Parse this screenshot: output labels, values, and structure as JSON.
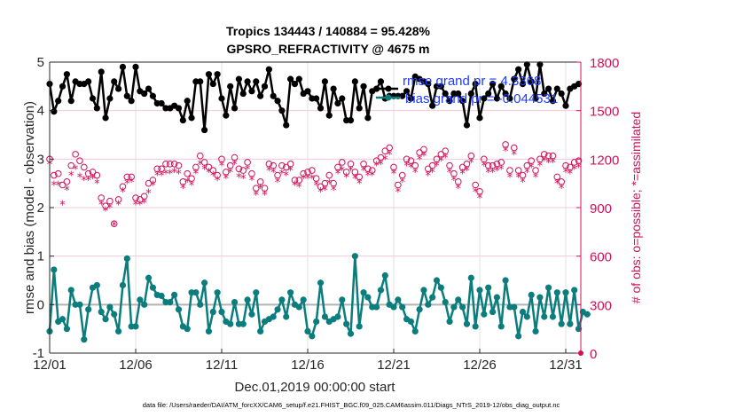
{
  "chart_data": {
    "type": "line",
    "title": [
      "Tropics 134443 / 140884 = 95.428%",
      "GPSRO_REFRACTIVITY @ 4675 m"
    ],
    "xlabel": "Dec.01,2019 00:00:00 start",
    "ylabel": "rmse and bias (model - observation)",
    "ylabel_right": "# of obs: o=possible; *=assimilated",
    "footer": "data file: /Users/raeder/DAI/ATM_forcXX/CAM6_setup/f.e21.FHIST_BGC.f09_025.CAM6assim.011/Diags_NTrS_2019-12/obs_diag_output.nc",
    "x_tick_labels": [
      "12/01",
      "12/06",
      "12/11",
      "12/16",
      "12/21",
      "12/26",
      "12/31"
    ],
    "x_tick_days": [
      0,
      5,
      10,
      15,
      20,
      25,
      30
    ],
    "xlim_days": [
      0,
      30.5
    ],
    "ylim": [
      -1,
      5
    ],
    "y_ticks": [
      -1,
      0,
      1,
      2,
      3,
      4,
      5
    ],
    "ylim_right": [
      0,
      1800
    ],
    "y_ticks_right": [
      0,
      300,
      600,
      900,
      1200,
      1500,
      1800
    ],
    "grid": true,
    "legend_position": "top-right",
    "legend": [
      {
        "label": "rmse grand pr = 4.3368",
        "color": "#000000"
      },
      {
        "label": "bias grand pr = -0.044531",
        "color": "#008080"
      }
    ],
    "colors": {
      "rmse": "#000000",
      "bias": "#0b7d7d",
      "obs": "#d0105a",
      "zero_line": "#b3b3b3",
      "grid": "#f2c9d8",
      "legend_text": "#1f3cff"
    },
    "time_step_days": 0.25,
    "series": [
      {
        "name": "rmse",
        "axis": "left",
        "values": [
          4.55,
          3.98,
          4.2,
          4.5,
          4.75,
          4.2,
          4.6,
          4.55,
          4.55,
          4.6,
          4.25,
          4.05,
          4.8,
          3.85,
          4.25,
          4.6,
          4.45,
          4.9,
          4.3,
          4.2,
          4.9,
          4.4,
          4.35,
          4.45,
          4.3,
          4.15,
          4.15,
          4.05,
          4.05,
          4.1,
          4.05,
          3.8,
          4.2,
          3.85,
          4.6,
          4.6,
          3.6,
          4.75,
          4.55,
          4.75,
          4.25,
          3.9,
          4.5,
          4.05,
          4.65,
          4.35,
          4.6,
          4.4,
          4.6,
          4.3,
          4.5,
          4.85,
          4.3,
          4.2,
          4.0,
          3.7,
          4.65,
          4.55,
          4.65,
          4.35,
          4.4,
          4.25,
          4.25,
          4.05,
          4.6,
          3.9,
          4.45,
          4.15,
          4.25,
          3.8,
          3.8,
          4.6,
          4.05,
          4.5,
          3.85,
          4.4,
          4.45,
          4.6,
          4.25,
          4.3,
          4.3,
          4.3,
          4.3,
          4.4,
          4.25,
          4.7,
          4.65,
          4.6,
          4.55,
          4.1,
          4.5,
          4.5,
          4.35,
          4.2,
          4.35,
          4.35,
          4.2,
          3.7,
          4.35,
          4.55,
          3.85,
          4.25,
          4.35,
          4.55,
          4.25,
          4.5,
          4.35,
          4.25,
          4.65,
          4.85,
          4.55,
          4.95,
          4.6,
          4.25,
          4.95,
          4.35,
          4.45,
          4.2,
          4.45,
          4.35,
          4.1,
          4.45,
          4.5,
          4.55
        ]
      },
      {
        "name": "bias",
        "axis": "left",
        "values": [
          -0.55,
          0.72,
          -0.35,
          -0.3,
          -0.5,
          0.3,
          0.0,
          0.0,
          -0.72,
          -0.1,
          0.35,
          0.4,
          -0.15,
          -0.3,
          -0.05,
          -0.2,
          -0.55,
          0.4,
          0.95,
          -0.45,
          -0.45,
          0.1,
          0.0,
          0.55,
          0.35,
          0.2,
          0.18,
          0.05,
          0.05,
          0.2,
          -0.1,
          -0.45,
          -0.5,
          0.25,
          0.25,
          0.0,
          0.45,
          -0.55,
          -0.15,
          0.25,
          -0.15,
          -0.35,
          -0.4,
          0.05,
          -0.4,
          -0.4,
          0.1,
          -0.2,
          0.25,
          -0.55,
          -0.35,
          -0.3,
          -0.25,
          -0.1,
          0.1,
          -0.25,
          0.25,
          0.0,
          -0.05,
          0.1,
          -0.55,
          -0.65,
          -0.35,
          0.45,
          -0.25,
          -0.35,
          -0.3,
          -0.25,
          0.1,
          -0.4,
          -0.6,
          1.0,
          -0.45,
          0.25,
          0.15,
          -0.05,
          -0.05,
          0.3,
          0.6,
          0.0,
          -0.05,
          0.1,
          -0.05,
          -0.3,
          -0.35,
          -0.55,
          -0.1,
          0.3,
          0.0,
          0.15,
          0.5,
          0.35,
          0.05,
          -0.35,
          -0.05,
          0.1,
          -0.05,
          -0.4,
          0.55,
          -0.45,
          0.3,
          -0.2,
          0.35,
          -0.15,
          0.15,
          -0.45,
          0.5,
          -0.05,
          -0.05,
          -0.65,
          -0.15,
          -0.25,
          0.2,
          -0.55,
          0.15,
          -0.25,
          0.35,
          -0.25,
          0.25,
          -0.4,
          0.25,
          -0.4,
          0.3,
          -0.5,
          -0.15,
          -0.2
        ]
      },
      {
        "name": "obs_possible",
        "axis": "right",
        "marker": "o",
        "values": [
          1200,
          1100,
          1110,
          1040,
          1060,
          1160,
          1230,
          1190,
          1150,
          1110,
          1120,
          1100,
          960,
          910,
          940,
          800,
          950,
          1030,
          1090,
          1090,
          960,
          950,
          970,
          1050,
          1070,
          1140,
          1140,
          1170,
          1170,
          1170,
          1160,
          1060,
          1110,
          1080,
          1150,
          1220,
          1180,
          1150,
          1130,
          1100,
          1200,
          1120,
          1160,
          1210,
          1140,
          1130,
          1180,
          1110,
          1020,
          1060,
          1020,
          1170,
          1160,
          1100,
          1160,
          1150,
          1170,
          1070,
          1070,
          1110,
          1120,
          1130,
          1080,
          1030,
          1050,
          1100,
          1050,
          1150,
          1180,
          1120,
          1170,
          1120,
          1090,
          1170,
          1140,
          1130,
          1190,
          1210,
          1250,
          1270,
          1150,
          1040,
          1100,
          1200,
          1190,
          1160,
          1240,
          1260,
          1140,
          1160,
          1200,
          1230,
          1250,
          1160,
          1110,
          1060,
          1150,
          1170,
          1220,
          1040,
          1000,
          1200,
          1160,
          1160,
          1170,
          1180,
          1290,
          1130,
          1270,
          1130,
          1100,
          1160,
          1190,
          1130,
          1200,
          1230,
          1220,
          1220,
          1090,
          1060,
          1160,
          1150,
          1180,
          1190
        ]
      },
      {
        "name": "obs_assimilated",
        "axis": "right",
        "marker": "*",
        "values": [
          1170,
          1040,
          1040,
          920,
          1010,
          1100,
          1140,
          1090,
          1070,
          1070,
          1080,
          1050,
          920,
          880,
          900,
          790,
          920,
          1000,
          1050,
          1060,
          920,
          920,
          930,
          990,
          1040,
          1100,
          1100,
          1110,
          1110,
          1120,
          1110,
          1020,
          1060,
          1040,
          1110,
          1170,
          1140,
          1120,
          1100,
          1070,
          1160,
          1080,
          1120,
          1170,
          1090,
          1080,
          1140,
          1070,
          980,
          1020,
          980,
          1130,
          1120,
          1060,
          1110,
          1100,
          1130,
          1040,
          1030,
          1080,
          1080,
          1080,
          1040,
          1000,
          1010,
          1050,
          1010,
          1110,
          1130,
          1090,
          1130,
          1080,
          1050,
          1130,
          1100,
          1100,
          1160,
          1170,
          1200,
          1230,
          1110,
          1000,
          1060,
          1160,
          1150,
          1120,
          1200,
          1220,
          1100,
          1120,
          1160,
          1190,
          1210,
          1120,
          1070,
          1020,
          1110,
          1130,
          1180,
          1000,
          960,
          1160,
          1120,
          1120,
          1130,
          1140,
          1250,
          1090,
          1230,
          1090,
          1060,
          1120,
          1150,
          1090,
          1160,
          1190,
          1180,
          1180,
          1050,
          1020,
          1120,
          1110,
          1140,
          1150
        ]
      }
    ]
  }
}
